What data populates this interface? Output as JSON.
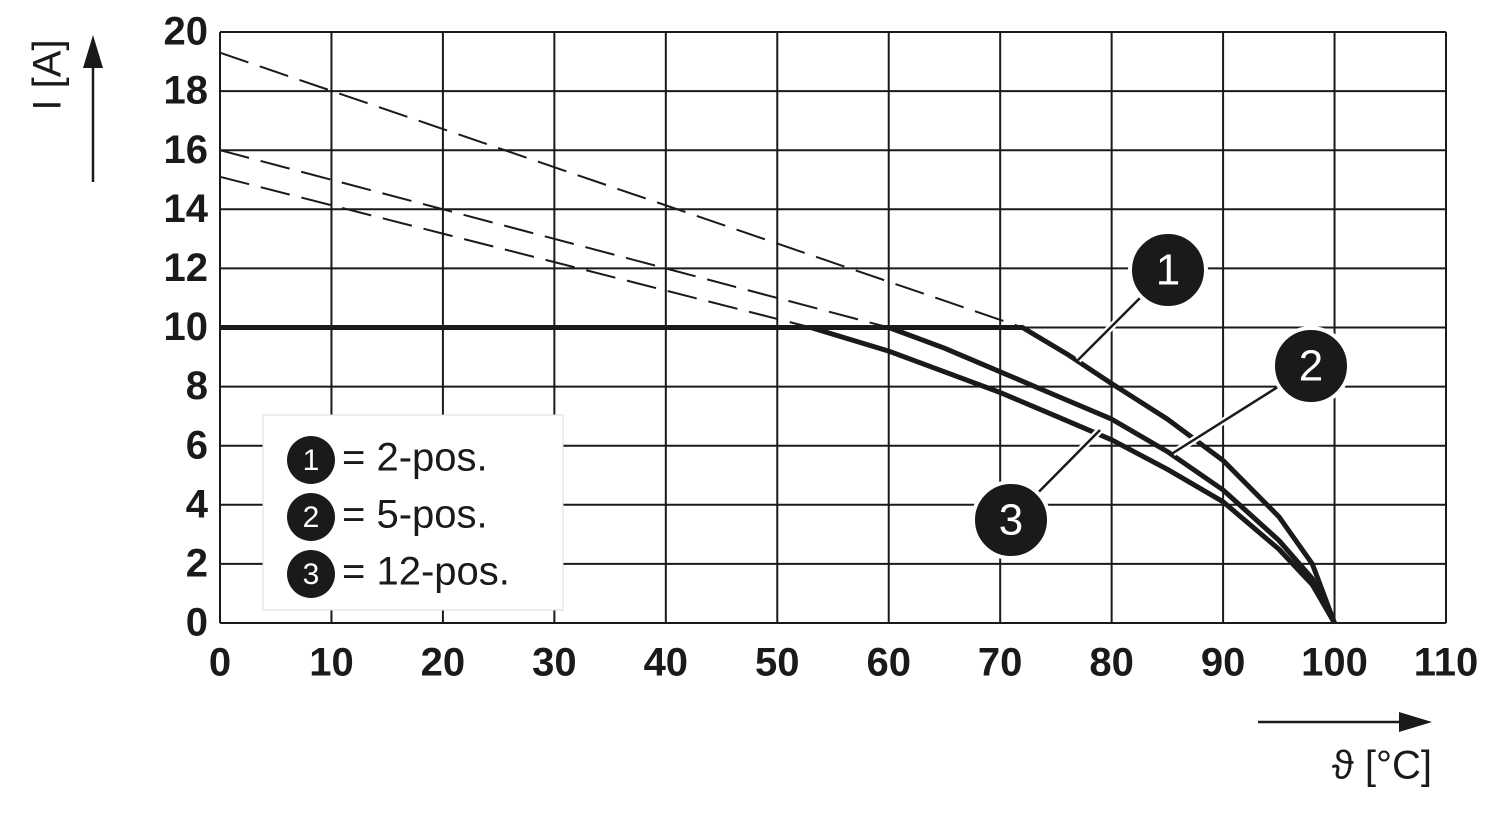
{
  "chart_data": {
    "type": "line",
    "x_label": "ϑ [°C]",
    "y_label": "I [A]",
    "xlim": [
      0,
      110
    ],
    "ylim": [
      0,
      20
    ],
    "xticks": [
      0,
      10,
      20,
      30,
      40,
      50,
      60,
      70,
      80,
      90,
      100,
      110
    ],
    "yticks": [
      0,
      2,
      4,
      6,
      8,
      10,
      12,
      14,
      16,
      18,
      20
    ],
    "grid": true,
    "series": [
      {
        "marker": "1",
        "name": "= 2-pos.",
        "color": "#1a1a1a",
        "x": [
          0,
          72,
          76,
          80,
          85,
          90,
          95,
          98,
          100
        ],
        "values": [
          10,
          10,
          9.1,
          8.1,
          6.9,
          5.5,
          3.6,
          2.0,
          0
        ],
        "extrapolated": {
          "x": [
            0,
            72
          ],
          "values": [
            19.3,
            10
          ]
        }
      },
      {
        "marker": "2",
        "name": "= 5-pos.",
        "color": "#1a1a1a",
        "x": [
          60,
          65,
          70,
          75,
          80,
          85,
          90,
          95,
          98,
          100
        ],
        "values": [
          10,
          9.3,
          8.5,
          7.7,
          6.9,
          5.8,
          4.5,
          2.8,
          1.5,
          0
        ],
        "extrapolated": {
          "x": [
            0,
            60
          ],
          "values": [
            16,
            10
          ]
        }
      },
      {
        "marker": "3",
        "name": "= 12-pos.",
        "color": "#1a1a1a",
        "x": [
          53,
          60,
          65,
          70,
          75,
          80,
          85,
          90,
          95,
          98,
          100
        ],
        "values": [
          10,
          9.2,
          8.5,
          7.8,
          7.0,
          6.2,
          5.2,
          4.1,
          2.5,
          1.3,
          0
        ],
        "extrapolated": {
          "x": [
            0,
            53
          ],
          "values": [
            15.1,
            10
          ]
        }
      }
    ]
  }
}
